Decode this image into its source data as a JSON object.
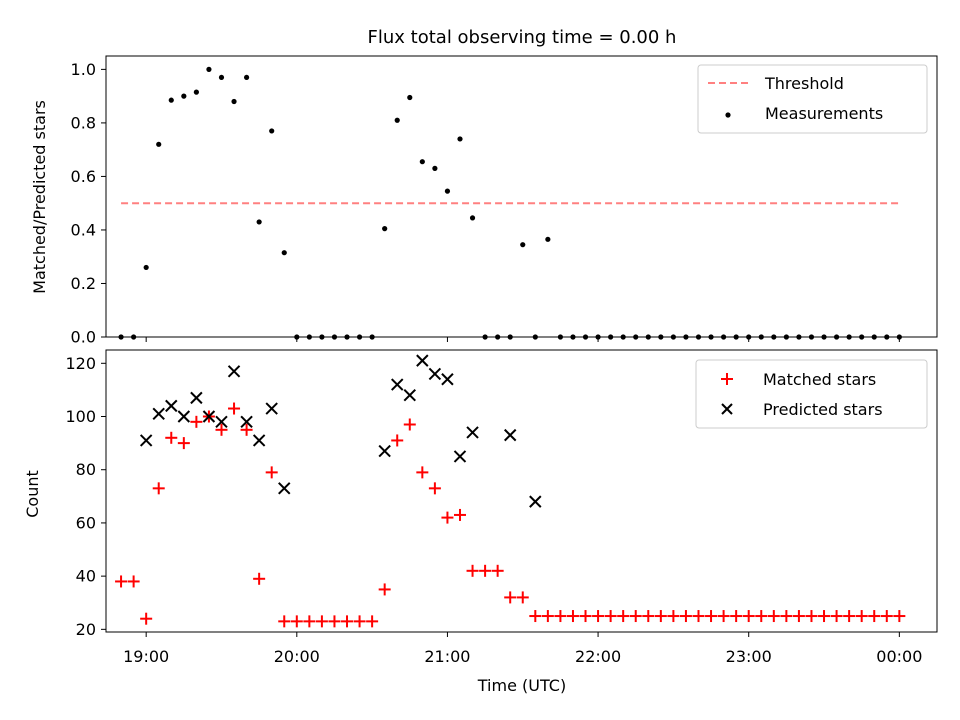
{
  "figure": {
    "title": "Flux total observing time = 0.00 h",
    "shared_x_ticks": [
      "19:00",
      "20:00",
      "21:00",
      "22:00",
      "23:00",
      "00:00"
    ]
  },
  "chart_data": [
    {
      "type": "scatter",
      "panel": "top",
      "title": "Flux total observing time = 0.00 h",
      "xlabel": "",
      "ylabel": "Matched/Predicted stars",
      "x_unit": "time (UTC)",
      "xlim": [
        "18:44",
        "00:15"
      ],
      "ylim": [
        0,
        1.05
      ],
      "yticks": [
        "0.0",
        "0.2",
        "0.4",
        "0.6",
        "0.8",
        "1.0"
      ],
      "grid": false,
      "legend_position": "top-right",
      "legend": [
        "Threshold",
        "Measurements"
      ],
      "colors": {
        "threshold": "#ff8080",
        "measurements": "#000000"
      },
      "threshold": {
        "name": "Threshold",
        "value": 0.5,
        "x_start": "18:50",
        "x_end": "00:00"
      },
      "series": [
        {
          "name": "Measurements",
          "x": [
            "18:50",
            "18:55",
            "19:00",
            "19:05",
            "19:10",
            "19:15",
            "19:20",
            "19:25",
            "19:30",
            "19:35",
            "19:40",
            "19:45",
            "19:50",
            "19:55",
            "20:00",
            "20:05",
            "20:10",
            "20:15",
            "20:20",
            "20:25",
            "20:30",
            "20:35",
            "20:40",
            "20:45",
            "20:50",
            "20:55",
            "21:00",
            "21:05",
            "21:10",
            "21:15",
            "21:20",
            "21:25",
            "21:30",
            "21:35",
            "21:40",
            "21:45",
            "21:50",
            "21:55",
            "22:00",
            "22:05",
            "22:10",
            "22:15",
            "22:20",
            "22:25",
            "22:30",
            "22:35",
            "22:40",
            "22:45",
            "22:50",
            "22:55",
            "23:00",
            "23:05",
            "23:10",
            "23:15",
            "23:20",
            "23:25",
            "23:30",
            "23:35",
            "23:40",
            "23:45",
            "23:50",
            "23:55",
            "00:00"
          ],
          "y": [
            0,
            0,
            0.26,
            0.72,
            0.885,
            0.9,
            0.915,
            1.0,
            0.97,
            0.88,
            0.97,
            0.43,
            0.77,
            0.315,
            0,
            0,
            0,
            0,
            0,
            0,
            0,
            0.405,
            0.81,
            0.895,
            0.655,
            0.63,
            0.545,
            0.74,
            0.445,
            0,
            0,
            0,
            0.345,
            0,
            0.365,
            0,
            0,
            0,
            0,
            0,
            0,
            0,
            0,
            0,
            0,
            0,
            0,
            0,
            0,
            0,
            0,
            0,
            0,
            0,
            0,
            0,
            0,
            0,
            0,
            0,
            0,
            0,
            0
          ]
        }
      ]
    },
    {
      "type": "scatter",
      "panel": "bottom",
      "xlabel": "Time (UTC)",
      "ylabel": "Count",
      "x_unit": "time (UTC)",
      "xlim": [
        "18:44",
        "00:15"
      ],
      "ylim": [
        19,
        125
      ],
      "yticks": [
        "20",
        "40",
        "60",
        "80",
        "100",
        "120"
      ],
      "xticks": [
        "19:00",
        "20:00",
        "21:00",
        "22:00",
        "23:00",
        "00:00"
      ],
      "grid": false,
      "legend_position": "top-right",
      "legend": [
        "Matched stars",
        "Predicted stars"
      ],
      "colors": {
        "matched": "#ff0000",
        "predicted": "#000000"
      },
      "series": [
        {
          "name": "Matched stars",
          "x": [
            "18:50",
            "18:55",
            "19:00",
            "19:05",
            "19:10",
            "19:15",
            "19:20",
            "19:25",
            "19:30",
            "19:35",
            "19:40",
            "19:45",
            "19:50",
            "19:55",
            "20:00",
            "20:05",
            "20:10",
            "20:15",
            "20:20",
            "20:25",
            "20:30",
            "20:35",
            "20:40",
            "20:45",
            "20:50",
            "20:55",
            "21:00",
            "21:05",
            "21:10",
            "21:15",
            "21:20",
            "21:25",
            "21:30",
            "21:35",
            "21:40",
            "21:45",
            "21:50",
            "21:55",
            "22:00",
            "22:05",
            "22:10",
            "22:15",
            "22:20",
            "22:25",
            "22:30",
            "22:35",
            "22:40",
            "22:45",
            "22:50",
            "22:55",
            "23:00",
            "23:05",
            "23:10",
            "23:15",
            "23:20",
            "23:25",
            "23:30",
            "23:35",
            "23:40",
            "23:45",
            "23:50",
            "23:55",
            "00:00"
          ],
          "y": [
            38,
            38,
            24,
            73,
            92,
            90,
            98,
            100,
            95,
            103,
            95,
            39,
            79,
            23,
            23,
            23,
            23,
            23,
            23,
            23,
            23,
            35,
            91,
            97,
            79,
            73,
            62,
            63,
            42,
            42,
            42,
            32,
            32,
            25,
            25,
            25,
            25,
            25,
            25,
            25,
            25,
            25,
            25,
            25,
            25,
            25,
            25,
            25,
            25,
            25,
            25,
            25,
            25,
            25,
            25,
            25,
            25,
            25,
            25,
            25,
            25,
            25,
            25
          ]
        },
        {
          "name": "Predicted stars",
          "x": [
            "19:00",
            "19:05",
            "19:10",
            "19:15",
            "19:20",
            "19:25",
            "19:30",
            "19:35",
            "19:40",
            "19:45",
            "19:50",
            "19:55",
            "20:35",
            "20:40",
            "20:45",
            "20:50",
            "20:55",
            "21:00",
            "21:05",
            "21:10",
            "21:25",
            "21:35"
          ],
          "y": [
            91,
            101,
            104,
            100,
            107,
            100,
            98,
            117,
            98,
            91,
            103,
            73,
            87,
            112,
            108,
            121,
            116,
            114,
            85,
            94,
            93,
            68
          ]
        }
      ]
    }
  ]
}
